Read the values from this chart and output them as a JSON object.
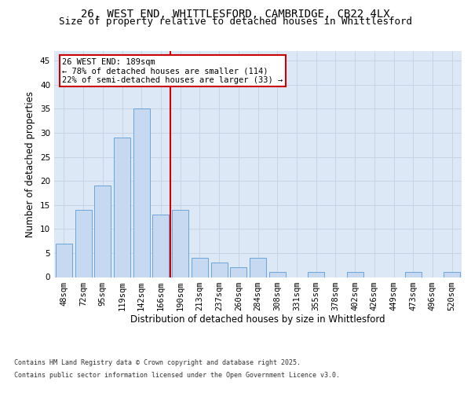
{
  "title_line1": "26, WEST END, WHITTLESFORD, CAMBRIDGE, CB22 4LX",
  "title_line2": "Size of property relative to detached houses in Whittlesford",
  "xlabel": "Distribution of detached houses by size in Whittlesford",
  "ylabel": "Number of detached properties",
  "categories": [
    "48sqm",
    "72sqm",
    "95sqm",
    "119sqm",
    "142sqm",
    "166sqm",
    "190sqm",
    "213sqm",
    "237sqm",
    "260sqm",
    "284sqm",
    "308sqm",
    "331sqm",
    "355sqm",
    "378sqm",
    "402sqm",
    "426sqm",
    "449sqm",
    "473sqm",
    "496sqm",
    "520sqm"
  ],
  "values": [
    7,
    14,
    19,
    29,
    35,
    13,
    14,
    4,
    3,
    2,
    4,
    1,
    0,
    1,
    0,
    1,
    0,
    0,
    1,
    0,
    1
  ],
  "bar_color": "#c6d9f0",
  "bar_edge_color": "#5b9bd5",
  "red_line_index": 6,
  "annotation_title": "26 WEST END: 189sqm",
  "annotation_line1": "← 78% of detached houses are smaller (114)",
  "annotation_line2": "22% of semi-detached houses are larger (33) →",
  "annotation_box_color": "#ffffff",
  "annotation_box_edge": "#cc0000",
  "red_line_color": "#cc0000",
  "grid_color": "#c8d4e3",
  "background_color": "#dce8f5",
  "ylim": [
    0,
    47
  ],
  "yticks": [
    0,
    5,
    10,
    15,
    20,
    25,
    30,
    35,
    40,
    45
  ],
  "footer_line1": "Contains HM Land Registry data © Crown copyright and database right 2025.",
  "footer_line2": "Contains public sector information licensed under the Open Government Licence v3.0.",
  "title_fontsize": 10,
  "subtitle_fontsize": 9,
  "tick_fontsize": 7.5,
  "label_fontsize": 8.5,
  "annotation_fontsize": 7.5,
  "footer_fontsize": 6
}
